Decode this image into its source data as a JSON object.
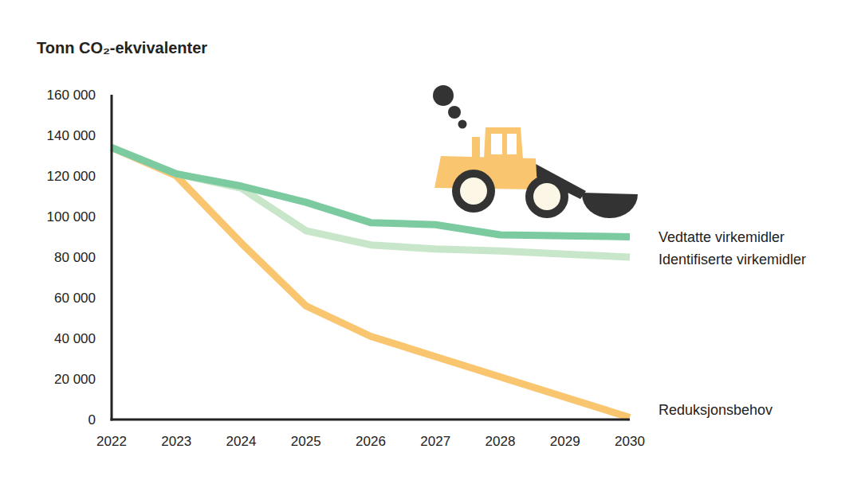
{
  "chart_data": {
    "type": "line",
    "title": "Tonn CO₂-ekvivalenter",
    "x": [
      2022,
      2023,
      2024,
      2025,
      2026,
      2027,
      2028,
      2029,
      2030
    ],
    "xlim": [
      2022,
      2030
    ],
    "xticks": [
      2022,
      2023,
      2024,
      2025,
      2026,
      2027,
      2028,
      2029,
      2030
    ],
    "ylim": [
      0,
      160000
    ],
    "yticks": [
      {
        "value": 0,
        "label": "0"
      },
      {
        "value": 20000,
        "label": "20 000"
      },
      {
        "value": 40000,
        "label": "40 000"
      },
      {
        "value": 60000,
        "label": "60 000"
      },
      {
        "value": 80000,
        "label": "80 000"
      },
      {
        "value": 100000,
        "label": "100 000"
      },
      {
        "value": 120000,
        "label": "120 000"
      },
      {
        "value": 140000,
        "label": "140 000"
      },
      {
        "value": 160000,
        "label": "160 000"
      }
    ],
    "grid": false,
    "series": [
      {
        "name": "Vedtatte virkemidler",
        "color": "#7ccaa0",
        "values": [
          134000,
          121000,
          115000,
          107000,
          97000,
          96000,
          91000,
          90500,
          90000
        ]
      },
      {
        "name": "Identifiserte virkemidler",
        "color": "#c8e6c9",
        "values": [
          134000,
          121000,
          114000,
          93000,
          86000,
          84000,
          83000,
          81500,
          80000
        ]
      },
      {
        "name": "Reduksjonsbehov",
        "color": "#f9c56f",
        "values": [
          134000,
          120000,
          87000,
          56000,
          41000,
          31000,
          21000,
          11000,
          1000
        ]
      }
    ]
  }
}
